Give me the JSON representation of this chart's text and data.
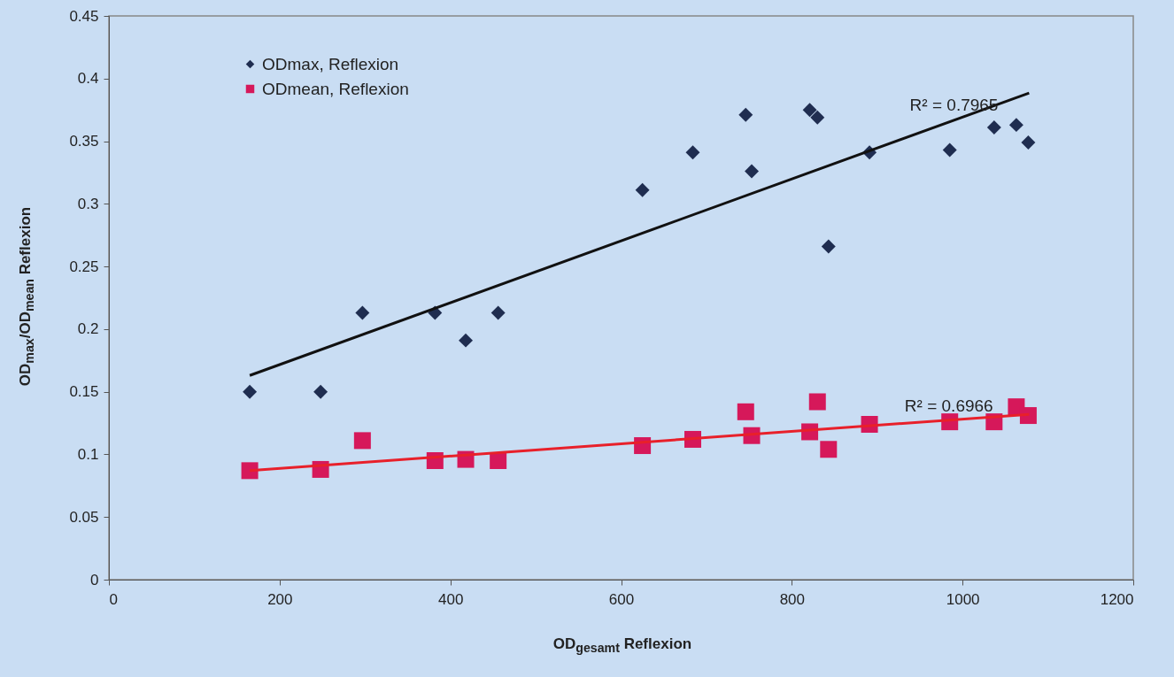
{
  "chart_data": {
    "type": "scatter",
    "xlabel": "OD$_{gesamt}$ Reflexion",
    "ylabel": "OD$_{max}$/OD$_{mean}$ Reflexion",
    "xlim": [
      0,
      1200
    ],
    "ylim": [
      0,
      0.45
    ],
    "xticks": [
      0,
      200,
      400,
      600,
      800,
      1000,
      1200
    ],
    "yticks": [
      0,
      0.05,
      0.1,
      0.15,
      0.2,
      0.25,
      0.3,
      0.35,
      0.4,
      0.45
    ],
    "grid": false,
    "legend": "top left",
    "series": [
      {
        "name": "ODmax, Reflexion",
        "marker": "diamond",
        "color": "#1f2d50",
        "x": [
          165,
          248,
          297,
          382,
          418,
          456,
          625,
          684,
          746,
          753,
          821,
          830,
          843,
          891,
          985,
          1037,
          1063,
          1077
        ],
        "values": [
          0.15,
          0.15,
          0.213,
          0.213,
          0.191,
          0.213,
          0.311,
          0.341,
          0.371,
          0.326,
          0.375,
          0.369,
          0.266,
          0.341,
          0.343,
          0.361,
          0.363,
          0.349
        ]
      },
      {
        "name": "ODmean, Reflexion",
        "marker": "square",
        "color": "#d6185a",
        "x": [
          165,
          248,
          297,
          382,
          418,
          456,
          625,
          684,
          746,
          753,
          821,
          830,
          843,
          891,
          985,
          1037,
          1063,
          1077
        ],
        "values": [
          0.087,
          0.088,
          0.111,
          0.095,
          0.096,
          0.095,
          0.107,
          0.112,
          0.134,
          0.115,
          0.118,
          0.142,
          0.104,
          0.124,
          0.126,
          0.126,
          0.138,
          0.131
        ]
      },
      {
        "type": "line",
        "color": "#111111",
        "x": [
          165,
          1078
        ],
        "values": [
          0.163,
          0.3885
        ]
      },
      {
        "type": "line",
        "color": "#e8202a",
        "x": [
          165,
          1078
        ],
        "values": [
          0.087,
          0.132
        ]
      }
    ],
    "annotations": [
      {
        "text": "R² = 0.7965",
        "x": 990,
        "y": 0.367
      },
      {
        "text": "R² = 0.6966",
        "x": 984,
        "y": 0.127
      }
    ]
  }
}
